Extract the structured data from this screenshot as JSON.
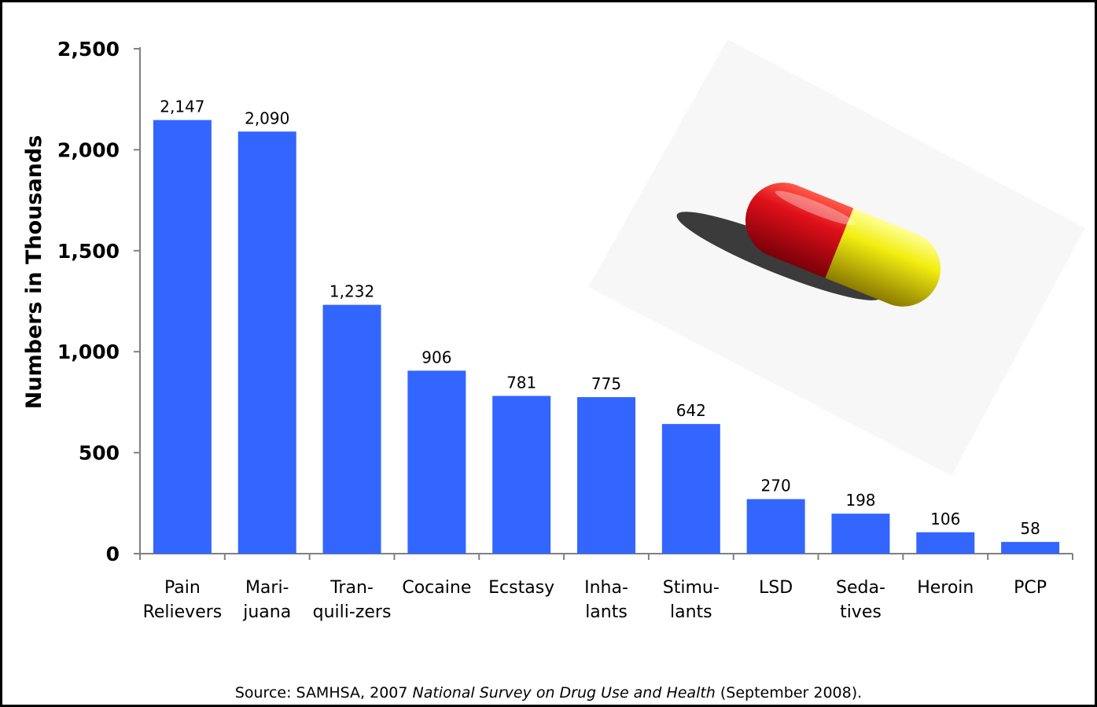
{
  "chart_data": {
    "type": "bar",
    "ylabel": "Numbers in Thousands",
    "xlabel": "",
    "ylim": [
      0,
      2500
    ],
    "yticks": [
      0,
      500,
      1000,
      1500,
      2000,
      2500
    ],
    "ytick_labels": [
      "0",
      "500",
      "1,000",
      "1,500",
      "2,000",
      "2,500"
    ],
    "categories": [
      [
        "Pain",
        "Relievers"
      ],
      [
        "Mari-",
        "juana"
      ],
      [
        "Tran-",
        "quili-zers"
      ],
      [
        "Cocaine"
      ],
      [
        "Ecstasy"
      ],
      [
        "Inha-",
        "lants"
      ],
      [
        "Stimu-",
        "lants"
      ],
      [
        "LSD"
      ],
      [
        "Seda-",
        "tives"
      ],
      [
        "Heroin"
      ],
      [
        "PCP"
      ]
    ],
    "values": [
      2147,
      2090,
      1232,
      906,
      781,
      775,
      642,
      270,
      198,
      106,
      58
    ],
    "value_labels": [
      "2,147",
      "2,090",
      "1,232",
      "906",
      "781",
      "775",
      "642",
      "270",
      "198",
      "106",
      "58"
    ],
    "bar_color": "#3366ff",
    "grid": false,
    "legend": "none"
  },
  "source": {
    "prefix": "Source:  SAMHSA, 2007 ",
    "title": "National Survey on Drug Use and Health",
    "suffix": " (September 2008)."
  },
  "photo": {
    "icon": "capsule-pill",
    "colors": {
      "cap_left": "#e0101a",
      "cap_right": "#f2ee10"
    }
  }
}
